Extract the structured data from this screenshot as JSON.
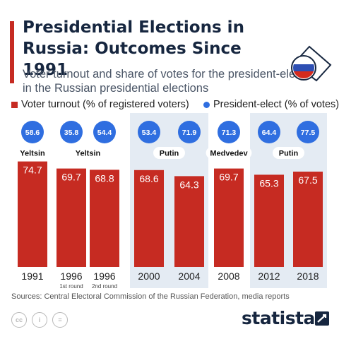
{
  "header": {
    "title": "Presidential Elections in Russia: Outcomes Since 1991",
    "subtitle": "Voter turnout and share of votes for the president-elect in the Russian presidential elections"
  },
  "legend": {
    "turnout_label": "Voter turnout (% of registered voters)",
    "president_label": "President-elect (% of votes)"
  },
  "chart_data": {
    "type": "bar",
    "title": "Presidential Elections in Russia: Outcomes Since 1991",
    "categories": [
      "1991",
      "1996",
      "1996",
      "2000",
      "2004",
      "2008",
      "2012",
      "2018"
    ],
    "round_labels": [
      "",
      "1st round",
      "2nd round",
      "",
      "",
      "",
      "",
      ""
    ],
    "series": [
      {
        "name": "Voter turnout (% of registered voters)",
        "values": [
          74.7,
          69.7,
          68.8,
          68.6,
          64.3,
          69.7,
          65.3,
          67.5
        ]
      },
      {
        "name": "President-elect (% of votes)",
        "values": [
          58.6,
          35.8,
          54.4,
          53.4,
          71.9,
          71.3,
          64.4,
          77.5
        ]
      }
    ],
    "president_groups": [
      {
        "name": "Yeltsin",
        "indices": [
          0
        ]
      },
      {
        "name": "Yeltsin",
        "indices": [
          1,
          2
        ]
      },
      {
        "name": "Putin",
        "indices": [
          3,
          4
        ]
      },
      {
        "name": "Medvedev",
        "indices": [
          5
        ]
      },
      {
        "name": "Putin",
        "indices": [
          6,
          7
        ]
      }
    ],
    "shaded_groups": [
      2,
      4
    ],
    "colors": {
      "bar": "#c62b22",
      "bubble": "#2f6ee0",
      "shade": "#e4ebf3"
    }
  },
  "source": "Sources: Central Electoral Commission of the Russian Federation, media reports",
  "license_icons": [
    "cc",
    "i",
    "="
  ],
  "brand": "statista",
  "icons": {
    "flag": "russian-flag-ballot-icon",
    "brand": "statista-logo-icon"
  }
}
